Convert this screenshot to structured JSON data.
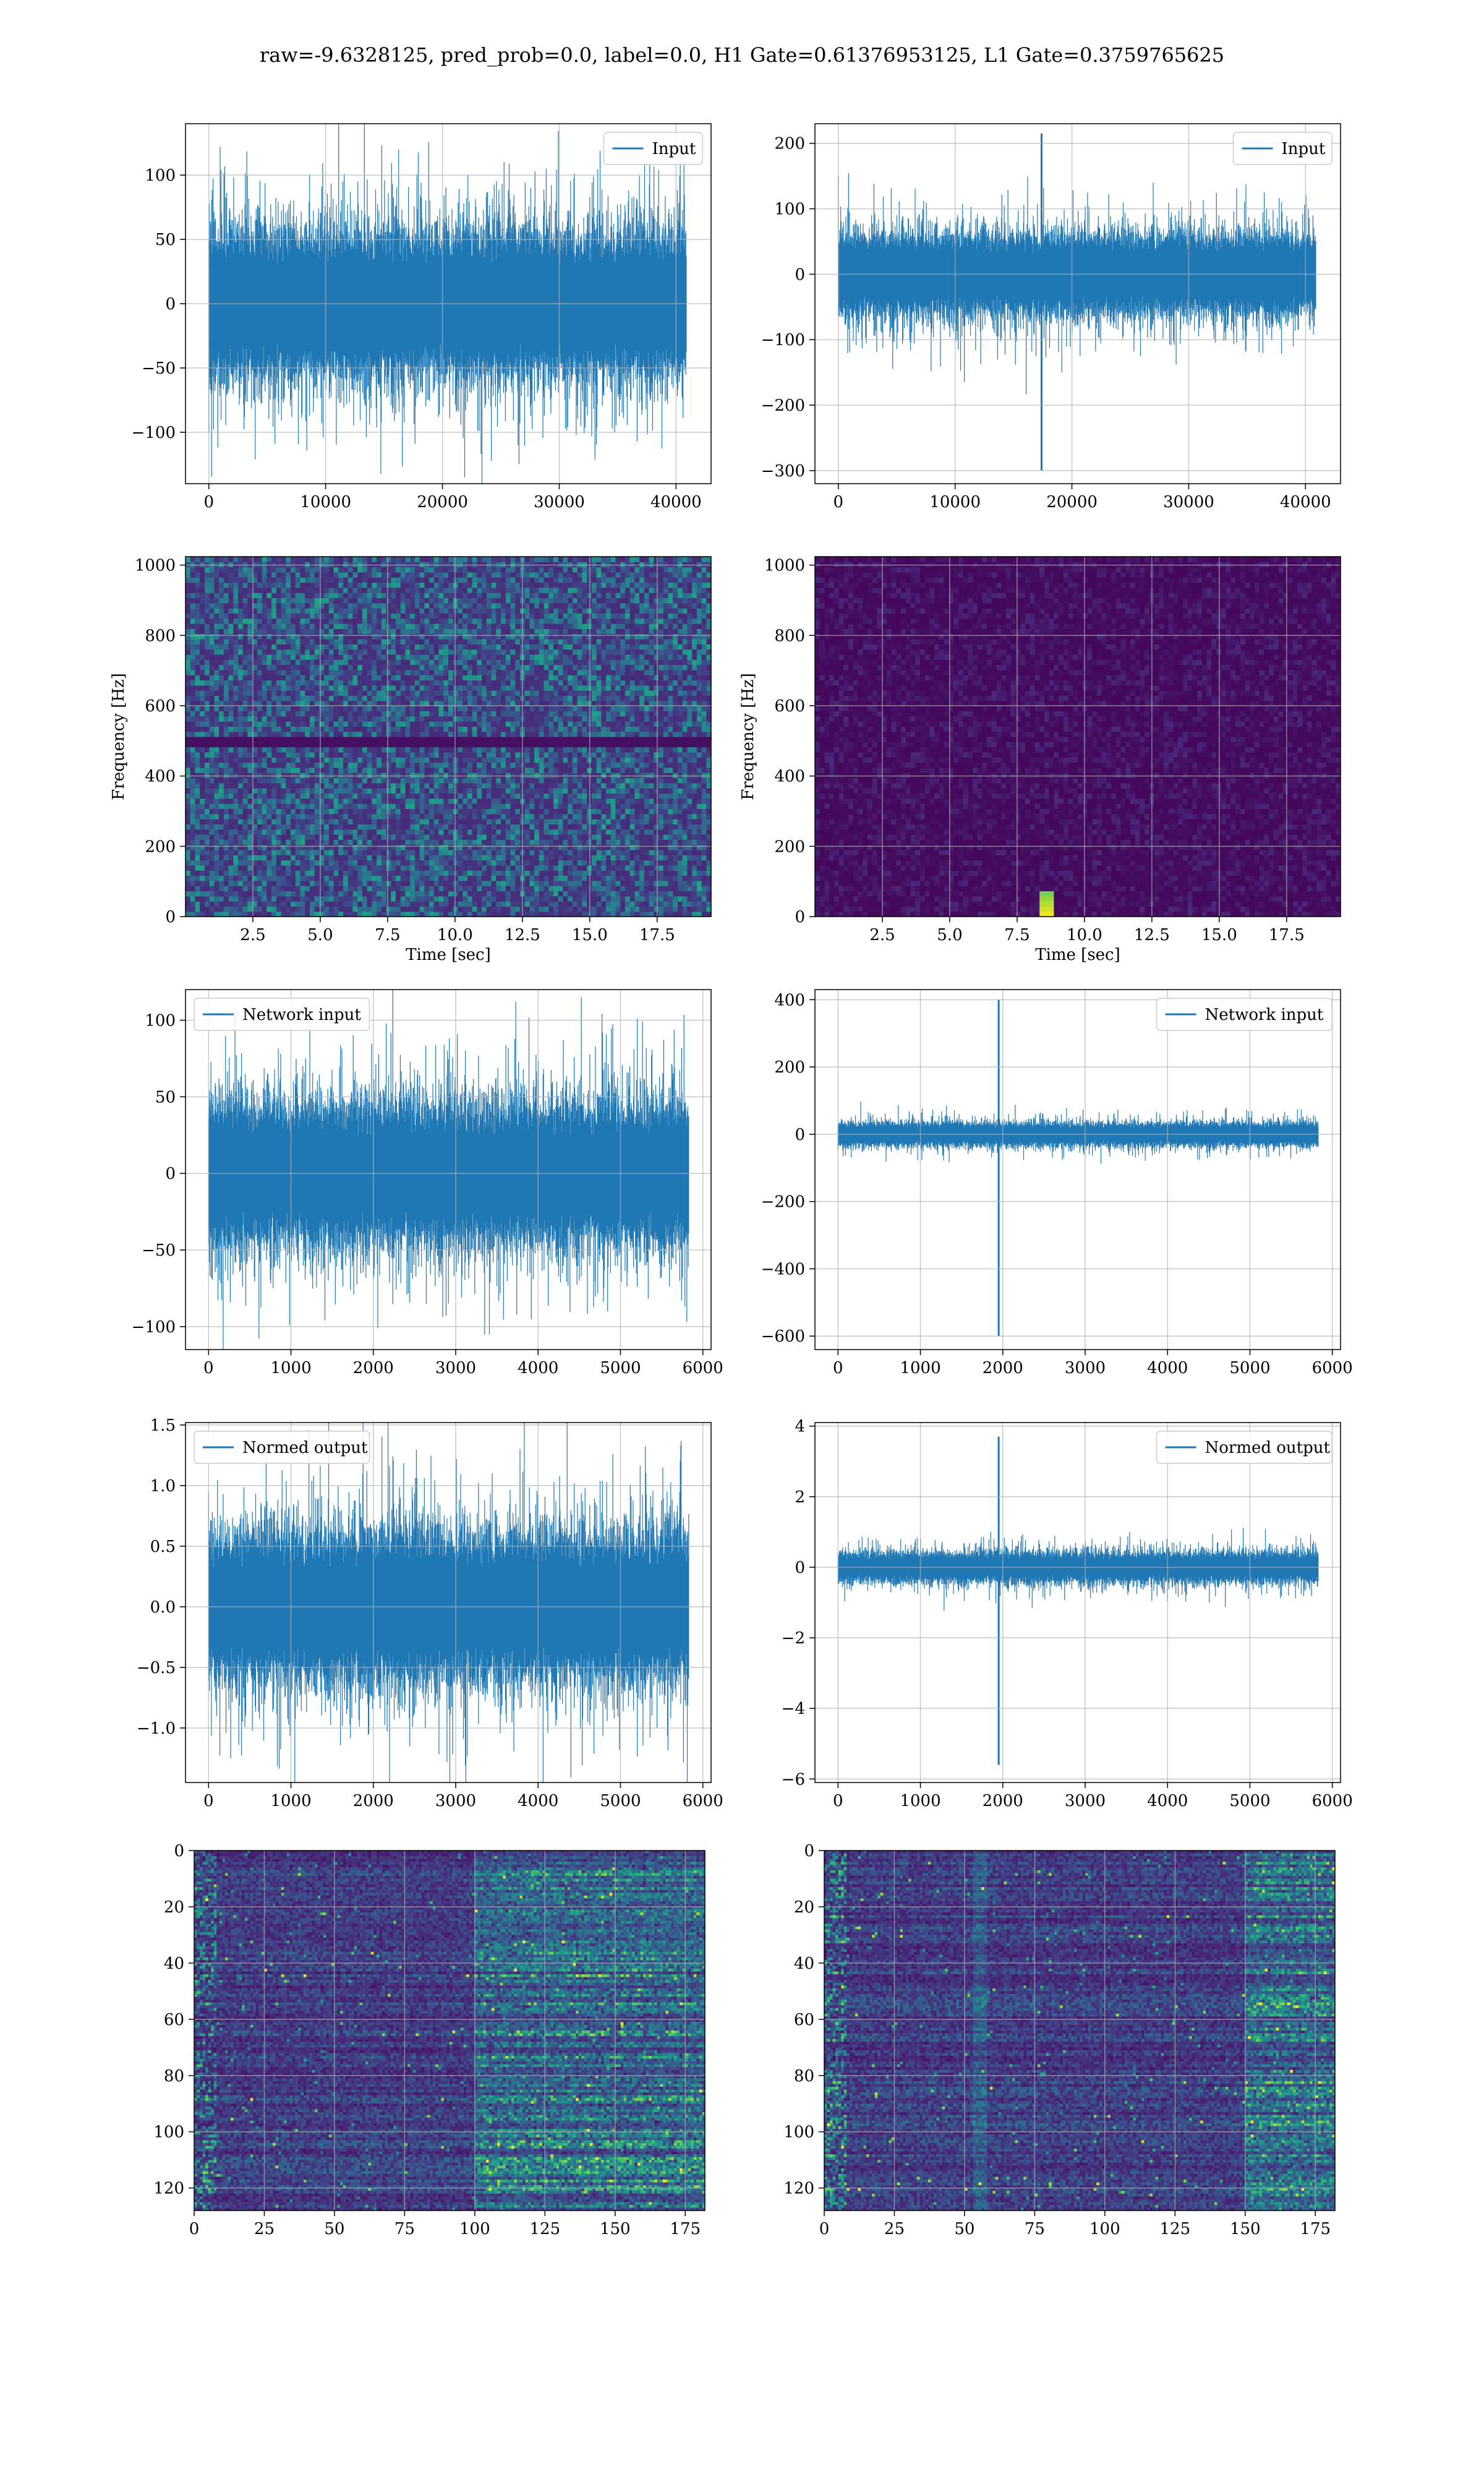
{
  "suptitle": "raw=-9.6328125, pred_prob=0.0, label=0.0, H1 Gate=0.61376953125, L1 Gate=0.3759765625",
  "colors": {
    "line": "#1f77b4",
    "grid": "#b0b0b0",
    "viridis_low": "#440154",
    "viridis_mid": "#21918c",
    "viridis_high": "#fde725"
  },
  "chart_data": [
    {
      "id": "h1-input",
      "type": "line",
      "style": "noise",
      "legend": "Input",
      "legend_loc": "upper right",
      "xlim": [
        -2000,
        43000
      ],
      "ylim": [
        -140,
        140
      ],
      "n_samples": 40960,
      "noise_amplitude": 75,
      "xticks": [
        0,
        10000,
        20000,
        30000,
        40000
      ],
      "xticklabels": [
        "0",
        "10000",
        "20000",
        "30000",
        "40000"
      ],
      "yticks": [
        -100,
        -50,
        0,
        50,
        100
      ],
      "yticklabels": [
        "−100",
        "−50",
        "0",
        "50",
        "100"
      ],
      "grid": true
    },
    {
      "id": "l1-input",
      "type": "line",
      "style": "noise",
      "legend": "Input",
      "legend_loc": "upper right",
      "xlim": [
        -2000,
        43000
      ],
      "ylim": [
        -320,
        230
      ],
      "n_samples": 40960,
      "noise_amplitude": 80,
      "spike": {
        "x": 17400,
        "min": -300,
        "max": 215
      },
      "xticks": [
        0,
        10000,
        20000,
        30000,
        40000
      ],
      "xticklabels": [
        "0",
        "10000",
        "20000",
        "30000",
        "40000"
      ],
      "yticks": [
        -300,
        -200,
        -100,
        0,
        100,
        200
      ],
      "yticklabels": [
        "−300",
        "−200",
        "−100",
        "0",
        "100",
        "200"
      ],
      "grid": true
    },
    {
      "id": "h1-spectrogram",
      "type": "heatmap",
      "style": "spectrogram",
      "xlim": [
        0,
        19.5
      ],
      "ylim": [
        0,
        1024
      ],
      "xlabel": "Time [sec]",
      "ylabel": "Frequency [Hz]",
      "xticks": [
        2.5,
        5.0,
        7.5,
        10.0,
        12.5,
        15.0,
        17.5
      ],
      "xticklabels": [
        "2.5",
        "5.0",
        "7.5",
        "10.0",
        "12.5",
        "15.0",
        "17.5"
      ],
      "yticks": [
        0,
        200,
        400,
        600,
        800,
        1000
      ],
      "yticklabels": [
        "0",
        "200",
        "400",
        "600",
        "800",
        "1000"
      ],
      "grid": true,
      "intensity": "moderate",
      "dark_band_hz": 500
    },
    {
      "id": "l1-spectrogram",
      "type": "heatmap",
      "style": "spectrogram",
      "xlim": [
        0,
        19.5
      ],
      "ylim": [
        0,
        1024
      ],
      "xlabel": "Time [sec]",
      "ylabel": "Frequency [Hz]",
      "xticks": [
        2.5,
        5.0,
        7.5,
        10.0,
        12.5,
        15.0,
        17.5
      ],
      "xticklabels": [
        "2.5",
        "5.0",
        "7.5",
        "10.0",
        "12.5",
        "15.0",
        "17.5"
      ],
      "yticks": [
        0,
        200,
        400,
        600,
        800,
        1000
      ],
      "yticklabels": [
        "0",
        "200",
        "400",
        "600",
        "800",
        "1000"
      ],
      "grid": true,
      "intensity": "low",
      "hotspot": {
        "t": 8.6,
        "f_max": 80
      }
    },
    {
      "id": "h1-network-input",
      "type": "line",
      "style": "noise",
      "legend": "Network input",
      "legend_loc": "upper left",
      "xlim": [
        -280,
        6100
      ],
      "ylim": [
        -115,
        120
      ],
      "n_samples": 5840,
      "noise_amplitude": 60,
      "xticks": [
        0,
        1000,
        2000,
        3000,
        4000,
        5000,
        6000
      ],
      "xticklabels": [
        "0",
        "1000",
        "2000",
        "3000",
        "4000",
        "5000",
        "6000"
      ],
      "yticks": [
        -100,
        -50,
        0,
        50,
        100
      ],
      "yticklabels": [
        "−100",
        "−50",
        "0",
        "50",
        "100"
      ],
      "grid": true
    },
    {
      "id": "l1-network-input",
      "type": "line",
      "style": "noise",
      "legend": "Network input",
      "legend_loc": "upper right",
      "xlim": [
        -280,
        6100
      ],
      "ylim": [
        -640,
        430
      ],
      "n_samples": 5840,
      "noise_amplitude": 45,
      "spike": {
        "x": 1950,
        "min": -600,
        "max": 400
      },
      "xticks": [
        0,
        1000,
        2000,
        3000,
        4000,
        5000,
        6000
      ],
      "xticklabels": [
        "0",
        "1000",
        "2000",
        "3000",
        "4000",
        "5000",
        "6000"
      ],
      "yticks": [
        -600,
        -400,
        -200,
        0,
        200,
        400
      ],
      "yticklabels": [
        "−600",
        "−400",
        "−200",
        "0",
        "200",
        "400"
      ],
      "grid": true
    },
    {
      "id": "h1-normed-output",
      "type": "line",
      "style": "noise",
      "legend": "Normed output",
      "legend_loc": "upper left",
      "xlim": [
        -280,
        6100
      ],
      "ylim": [
        -1.45,
        1.52
      ],
      "n_samples": 5840,
      "noise_amplitude": 0.8,
      "xticks": [
        0,
        1000,
        2000,
        3000,
        4000,
        5000,
        6000
      ],
      "xticklabels": [
        "0",
        "1000",
        "2000",
        "3000",
        "4000",
        "5000",
        "6000"
      ],
      "yticks": [
        -1.0,
        -0.5,
        0.0,
        0.5,
        1.0,
        1.5
      ],
      "yticklabels": [
        "−1.0",
        "−0.5",
        "0.0",
        "0.5",
        "1.0",
        "1.5"
      ],
      "grid": true
    },
    {
      "id": "l1-normed-output",
      "type": "line",
      "style": "noise",
      "legend": "Normed output",
      "legend_loc": "upper right",
      "xlim": [
        -280,
        6100
      ],
      "ylim": [
        -6.1,
        4.1
      ],
      "n_samples": 5840,
      "noise_amplitude": 0.55,
      "spike": {
        "x": 1950,
        "min": -5.6,
        "max": 3.7
      },
      "xticks": [
        0,
        1000,
        2000,
        3000,
        4000,
        5000,
        6000
      ],
      "xticklabels": [
        "0",
        "1000",
        "2000",
        "3000",
        "4000",
        "5000",
        "6000"
      ],
      "yticks": [
        -6,
        -4,
        -2,
        0,
        2,
        4
      ],
      "yticklabels": [
        "−6",
        "−4",
        "−2",
        "0",
        "2",
        "4"
      ],
      "grid": true
    },
    {
      "id": "h1-feature-map",
      "type": "heatmap",
      "style": "featuremap",
      "xlim": [
        0,
        182
      ],
      "ylim": [
        128,
        0
      ],
      "xticks": [
        0,
        25,
        50,
        75,
        100,
        125,
        150,
        175
      ],
      "xticklabels": [
        "0",
        "25",
        "50",
        "75",
        "100",
        "125",
        "150",
        "175"
      ],
      "yticks": [
        0,
        20,
        40,
        60,
        80,
        100,
        120
      ],
      "yticklabels": [
        "0",
        "20",
        "40",
        "60",
        "80",
        "100",
        "120"
      ],
      "grid": true,
      "bright_region": [
        100,
        182
      ]
    },
    {
      "id": "l1-feature-map",
      "type": "heatmap",
      "style": "featuremap",
      "xlim": [
        0,
        182
      ],
      "ylim": [
        128,
        0
      ],
      "xticks": [
        0,
        25,
        50,
        75,
        100,
        125,
        150,
        175
      ],
      "xticklabels": [
        "0",
        "25",
        "50",
        "75",
        "100",
        "125",
        "150",
        "175"
      ],
      "yticks": [
        0,
        20,
        40,
        60,
        80,
        100,
        120
      ],
      "yticklabels": [
        "0",
        "20",
        "40",
        "60",
        "80",
        "100",
        "120"
      ],
      "grid": true,
      "bright_region": [
        150,
        182
      ],
      "boundary_x": 55
    }
  ]
}
